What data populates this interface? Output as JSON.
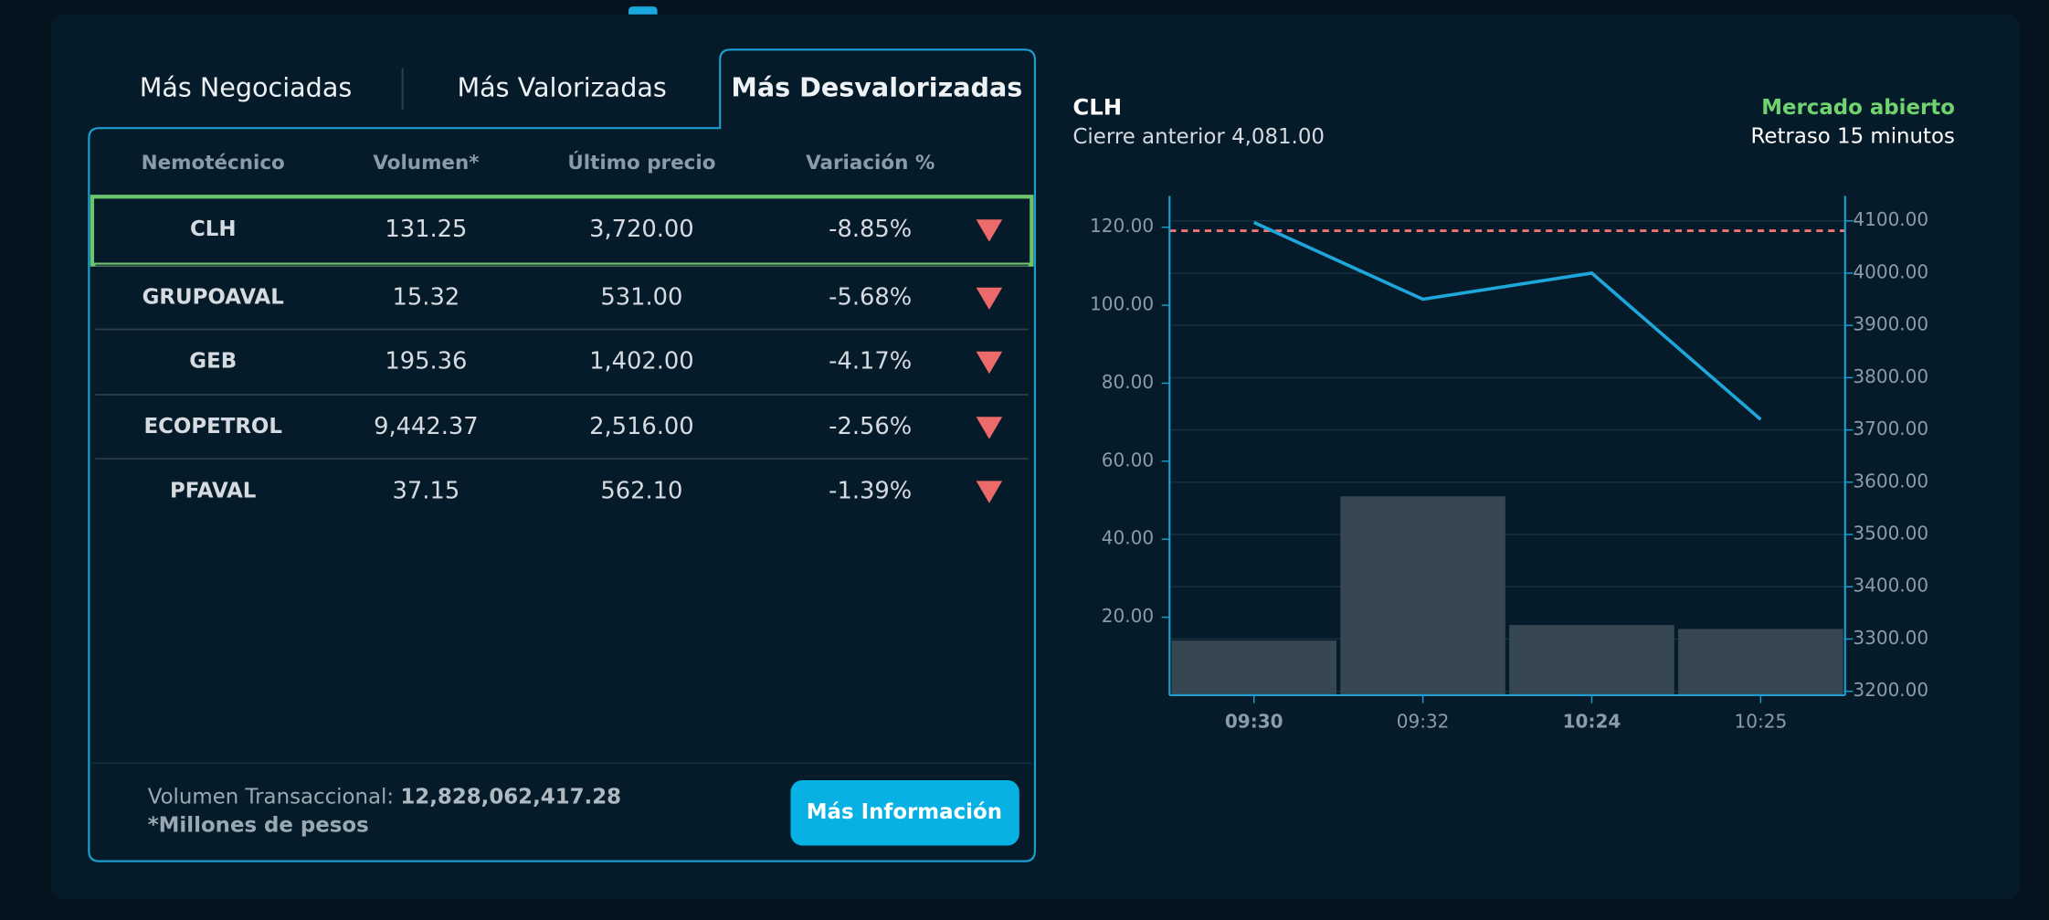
{
  "tabs": [
    "Más Negociadas",
    "Más Valorizadas",
    "Más Desvalorizadas"
  ],
  "active_tab": 2,
  "table": {
    "headers": [
      "Nemotécnico",
      "Volumen*",
      "Último precio",
      "Variación %"
    ],
    "rows": [
      [
        "CLH",
        "131.25",
        "3,720.00",
        "-8.85%"
      ],
      [
        "GRUPOAVAL",
        "15.32",
        "531.00",
        "-5.68%"
      ],
      [
        "GEB",
        "195.36",
        "1,402.00",
        "-4.17%"
      ],
      [
        "ECOPETROL",
        "9,442.37",
        "2,516.00",
        "-2.56%"
      ],
      [
        "PFAVAL",
        "37.15",
        "562.10",
        "-1.39%"
      ]
    ],
    "selected_row": 0
  },
  "footer": {
    "volume_label": "Volumen Transaccional:",
    "volume_value": "12,828,062,417.28",
    "note": "*Millones de pesos"
  },
  "button": "Más Información",
  "chart_data": {
    "type": "bar_line",
    "title": "CLH",
    "previous_close_label": "Cierre anterior",
    "previous_close": 4081,
    "previous_close_value_label": "4,081.00",
    "reference_color": "#f07575",
    "market_status": "Mercado abierto",
    "delay": "Retraso 15 minutos",
    "categories": [
      "09:30",
      "09:32",
      "10:24",
      "10:25"
    ],
    "series": [
      {
        "type": "bar",
        "color": "#364752",
        "values": [
          14,
          51,
          18,
          17
        ]
      },
      {
        "type": "line",
        "axis": "y2",
        "color": "#1ea7dc",
        "values": [
          4097,
          3950,
          4000,
          3720
        ]
      }
    ],
    "ylim": [
      0,
      128
    ],
    "yticks": [
      {
        "value": 20,
        "label": "20.00"
      },
      {
        "value": 40,
        "label": "40.00"
      },
      {
        "value": 60,
        "label": "60.00"
      },
      {
        "value": 80,
        "label": "80.00"
      },
      {
        "value": 100,
        "label": "100.00"
      },
      {
        "value": 120,
        "label": "120.00"
      }
    ],
    "y2lim": [
      3192.5,
      4147.5
    ],
    "y2ticks": [
      {
        "value": 3200,
        "label": "3200.00"
      },
      {
        "value": 3300,
        "label": "3300.00"
      },
      {
        "value": 3400,
        "label": "3400.00"
      },
      {
        "value": 3500,
        "label": "3500.00"
      },
      {
        "value": 3600,
        "label": "3600.00"
      },
      {
        "value": 3700,
        "label": "3700.00"
      },
      {
        "value": 3800,
        "label": "3800.00"
      },
      {
        "value": 3900,
        "label": "3900.00"
      },
      {
        "value": 4000,
        "label": "4000.00"
      },
      {
        "value": 4100,
        "label": "4100.00"
      }
    ],
    "grid": true
  }
}
